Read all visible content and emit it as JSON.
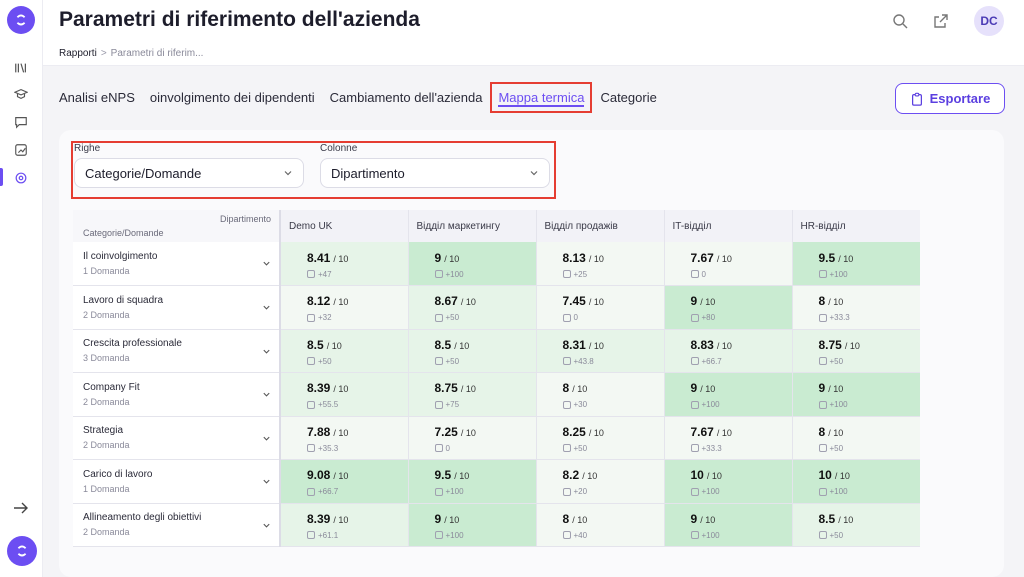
{
  "header": {
    "title": "Parametri di riferimento dell'azienda",
    "avatar_initials": "DC"
  },
  "breadcrumb": {
    "root": "Rapporti",
    "separator": ">",
    "current": "Parametri di riferim..."
  },
  "tabs": [
    {
      "label": "Analisi eNPS"
    },
    {
      "label": "oinvolgimento dei dipendenti"
    },
    {
      "label": "Cambiamento dell'azienda"
    },
    {
      "label": "Mappa termica",
      "active": true
    },
    {
      "label": "Categorie"
    }
  ],
  "export_label": "Esportare",
  "filters": {
    "rows": {
      "label": "Righe",
      "value": "Categorie/Domande"
    },
    "columns": {
      "label": "Colonne",
      "value": "Dipartimento"
    }
  },
  "table": {
    "corner_top": "Dipartimento",
    "corner_bottom": "Categorie/Domande",
    "columns": [
      "Demo UK",
      "Відділ маркетингу",
      "Відділ продажів",
      "IT-відділ",
      "HR-відділ"
    ],
    "rows": [
      {
        "title": "Il coinvolgimento",
        "sub": "1 Domanda",
        "cells": [
          {
            "score": "8.41",
            "delta": "+47"
          },
          {
            "score": "9",
            "delta": "+100"
          },
          {
            "score": "8.13",
            "delta": "+25"
          },
          {
            "score": "7.67",
            "delta": "0"
          },
          {
            "score": "9.5",
            "delta": "+100"
          }
        ]
      },
      {
        "title": "Lavoro di squadra",
        "sub": "2 Domanda",
        "cells": [
          {
            "score": "8.12",
            "delta": "+32"
          },
          {
            "score": "8.67",
            "delta": "+50"
          },
          {
            "score": "7.45",
            "delta": "0"
          },
          {
            "score": "9",
            "delta": "+80"
          },
          {
            "score": "8",
            "delta": "+33.3"
          }
        ]
      },
      {
        "title": "Crescita professionale",
        "sub": "3 Domanda",
        "cells": [
          {
            "score": "8.5",
            "delta": "+50"
          },
          {
            "score": "8.5",
            "delta": "+50"
          },
          {
            "score": "8.31",
            "delta": "+43.8"
          },
          {
            "score": "8.83",
            "delta": "+66.7"
          },
          {
            "score": "8.75",
            "delta": "+50"
          }
        ]
      },
      {
        "title": "Company Fit",
        "sub": "2 Domanda",
        "cells": [
          {
            "score": "8.39",
            "delta": "+55.5"
          },
          {
            "score": "8.75",
            "delta": "+75"
          },
          {
            "score": "8",
            "delta": "+30"
          },
          {
            "score": "9",
            "delta": "+100"
          },
          {
            "score": "9",
            "delta": "+100"
          }
        ]
      },
      {
        "title": "Strategia",
        "sub": "2 Domanda",
        "cells": [
          {
            "score": "7.88",
            "delta": "+35.3"
          },
          {
            "score": "7.25",
            "delta": "0"
          },
          {
            "score": "8.25",
            "delta": "+50"
          },
          {
            "score": "7.67",
            "delta": "+33.3"
          },
          {
            "score": "8",
            "delta": "+50"
          }
        ]
      },
      {
        "title": "Carico di lavoro",
        "sub": "1 Domanda",
        "cells": [
          {
            "score": "9.08",
            "delta": "+66.7"
          },
          {
            "score": "9.5",
            "delta": "+100"
          },
          {
            "score": "8.2",
            "delta": "+20"
          },
          {
            "score": "10",
            "delta": "+100"
          },
          {
            "score": "10",
            "delta": "+100"
          }
        ]
      },
      {
        "title": "Allineamento degli obiettivi",
        "sub": "2 Domanda",
        "cells": [
          {
            "score": "8.39",
            "delta": "+61.1"
          },
          {
            "score": "9",
            "delta": "+100"
          },
          {
            "score": "8",
            "delta": "+40"
          },
          {
            "score": "9",
            "delta": "+100"
          },
          {
            "score": "8.5",
            "delta": "+50"
          }
        ]
      }
    ],
    "out_of": "/ 10"
  },
  "colors": {
    "accent": "#6c4ef2",
    "highlight_border": "#e53d32",
    "heat_low": "#f3f8f3",
    "heat_mid": "#e6f4e8",
    "heat_high": "#c9ebd1"
  }
}
